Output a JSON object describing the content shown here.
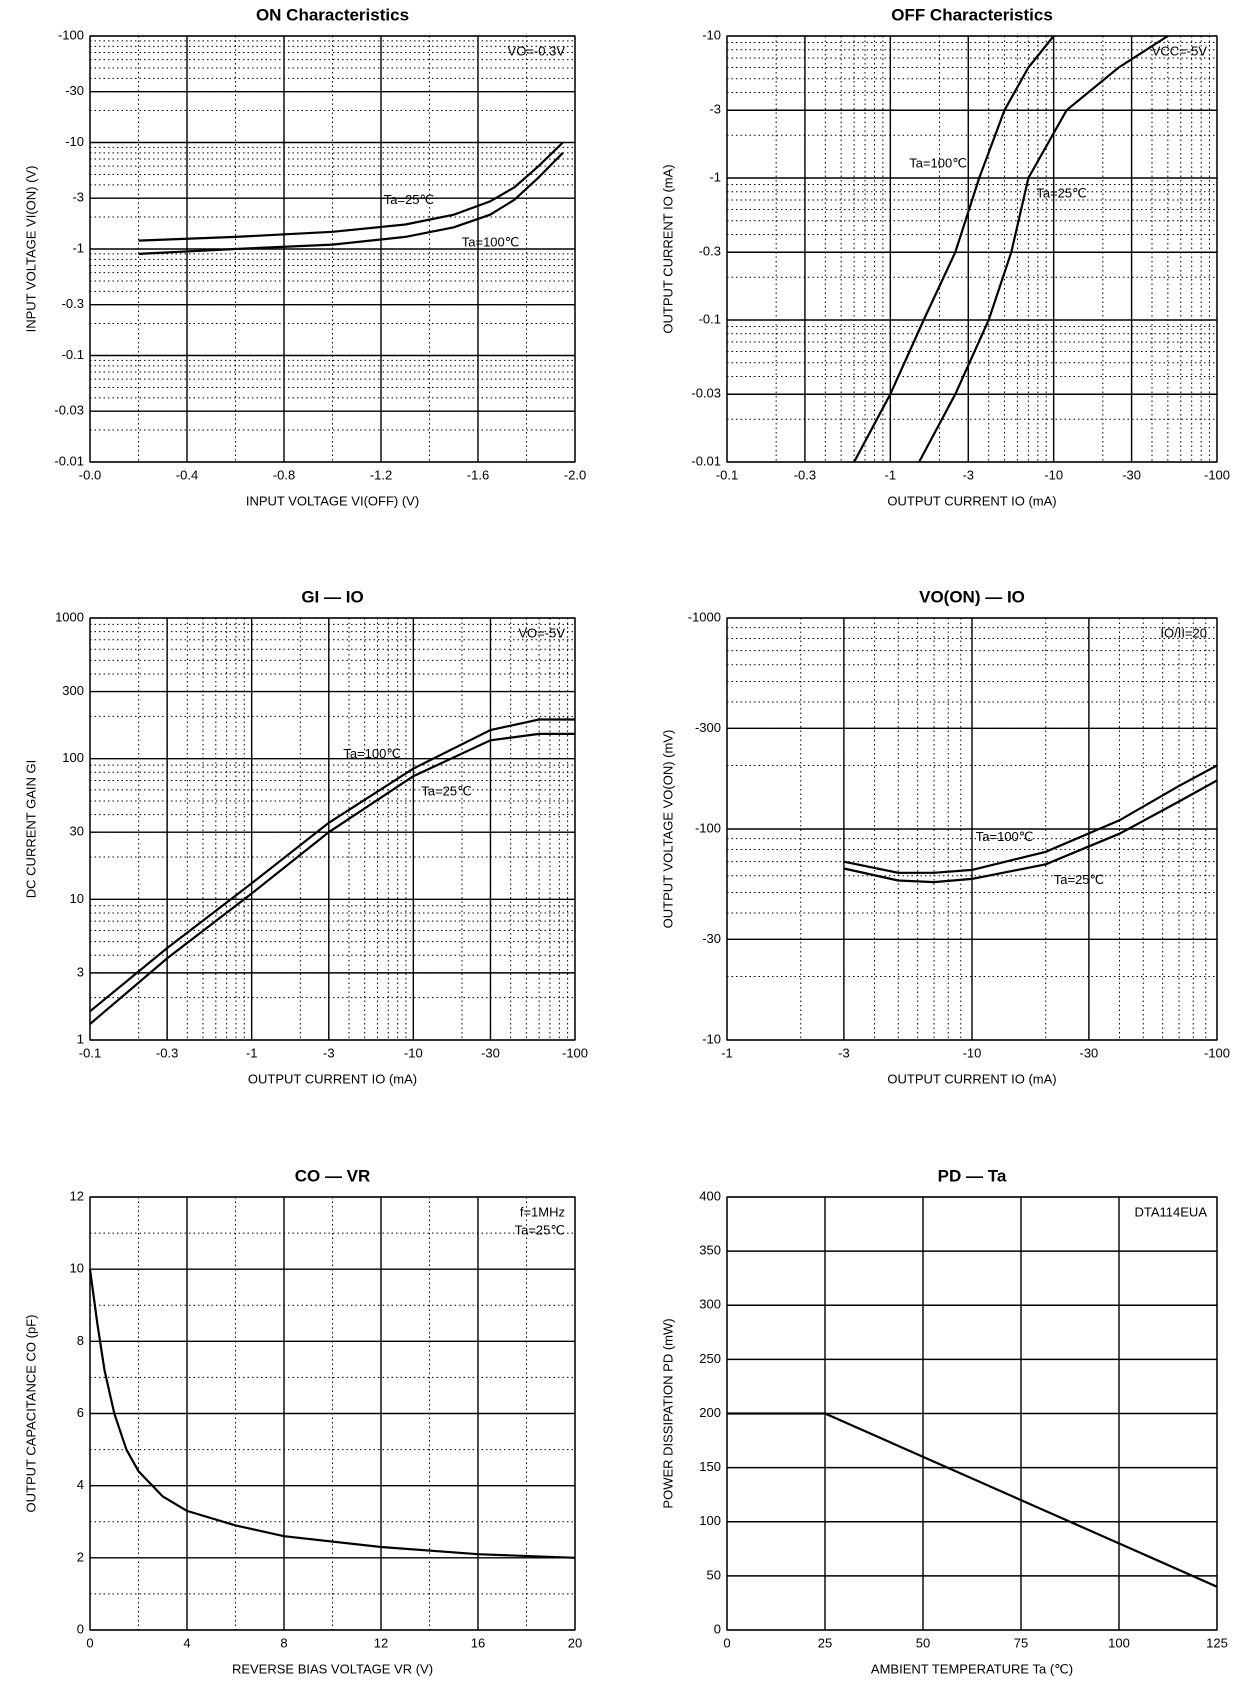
{
  "chart_data": [
    {
      "type": "line",
      "title": "ON Characteristics",
      "xlabel": "INPUT VOLTAGE VI(OFF) (V)",
      "ylabel": "INPUT VOLTAGE VI(ON) (V)",
      "xlog": false,
      "ylog": true,
      "grid": true,
      "minor_grid": true,
      "xlim": [
        0,
        -2
      ],
      "ylim": [
        -0.01,
        -100
      ],
      "xticks": [
        {
          "value": 0,
          "label": "-0.0"
        },
        -0.4,
        -0.8,
        -1.2,
        -1.6,
        {
          "value": -2,
          "label": "-2.0"
        }
      ],
      "yticks": [
        -0.01,
        -0.03,
        -0.1,
        -0.3,
        -1,
        -3,
        -10,
        -30,
        -100
      ],
      "annotations": [
        "VO=-0.3V"
      ],
      "series": [
        {
          "name": "Ta=25℃",
          "color": "#000000",
          "x": [
            -0.2,
            -0.6,
            -1.0,
            -1.3,
            -1.5,
            -1.65,
            -1.75,
            -1.85,
            -1.95
          ],
          "values": [
            -1.2,
            -1.3,
            -1.45,
            -1.7,
            -2.1,
            -2.8,
            -3.8,
            -6,
            -10
          ]
        },
        {
          "name": "Ta=100℃",
          "color": "#000000",
          "x": [
            -0.2,
            -0.6,
            -1.0,
            -1.3,
            -1.5,
            -1.65,
            -1.75,
            -1.85,
            -1.95
          ],
          "values": [
            -0.9,
            -1.0,
            -1.1,
            -1.3,
            -1.6,
            -2.1,
            -2.9,
            -4.7,
            -8
          ]
        }
      ]
    },
    {
      "type": "line",
      "title": "OFF Characteristics",
      "xlabel": "OUTPUT CURRENT IO (mA)",
      "ylabel": "OUTPUT CURRENT IO (mA)",
      "xlog": true,
      "ylog": true,
      "grid": true,
      "minor_grid": true,
      "xlim": [
        -0.1,
        -100
      ],
      "ylim": [
        -0.01,
        -10
      ],
      "xticks": [
        -0.1,
        -0.3,
        -1,
        -3,
        -10,
        -30,
        -100
      ],
      "yticks": [
        -0.01,
        -0.03,
        -0.1,
        -0.3,
        -1,
        -3,
        -10
      ],
      "annotations": [
        "VCC=-5V"
      ],
      "series": [
        {
          "name": "Ta=100℃",
          "color": "#000000",
          "x": [
            -0.6,
            -1,
            -1.6,
            -2.5,
            -3.5,
            -5,
            -7,
            -10
          ],
          "values": [
            -0.01,
            -0.03,
            -0.1,
            -0.3,
            -1,
            -3,
            -6,
            -10
          ]
        },
        {
          "name": "Ta=25℃",
          "color": "#000000",
          "x": [
            -1.5,
            -2.5,
            -4,
            -5.5,
            -7,
            -12,
            -25,
            -50
          ],
          "values": [
            -0.01,
            -0.03,
            -0.1,
            -0.3,
            -1,
            -3,
            -6,
            -10
          ]
        }
      ]
    },
    {
      "type": "line",
      "title": "GI — IO",
      "xlabel": "OUTPUT CURRENT IO (mA)",
      "ylabel": "DC CURRENT GAIN GI",
      "xlog": true,
      "ylog": true,
      "grid": true,
      "minor_grid": true,
      "xlim": [
        -0.1,
        -100
      ],
      "ylim": [
        1,
        1000
      ],
      "xticks": [
        -0.1,
        -0.3,
        -1,
        -3,
        -10,
        -30,
        -100
      ],
      "yticks": [
        1,
        3,
        10,
        30,
        100,
        300,
        1000
      ],
      "annotations": [
        "VO=-5V"
      ],
      "series": [
        {
          "name": "Ta=100℃",
          "color": "#000000",
          "x": [
            -0.1,
            -0.3,
            -1,
            -3,
            -10,
            -30,
            -60,
            -100
          ],
          "values": [
            1.6,
            4.5,
            13,
            35,
            85,
            160,
            190,
            190
          ]
        },
        {
          "name": "Ta=25℃",
          "color": "#000000",
          "x": [
            -0.1,
            -0.3,
            -1,
            -3,
            -10,
            -30,
            -60,
            -100
          ],
          "values": [
            1.3,
            3.8,
            11,
            30,
            75,
            135,
            150,
            150
          ]
        }
      ]
    },
    {
      "type": "line",
      "title": "VO(ON) — IO",
      "xlabel": "OUTPUT CURRENT IO (mA)",
      "ylabel": "OUTPUT VOLTAGE VO(ON) (mV)",
      "xlog": true,
      "ylog": true,
      "grid": true,
      "minor_grid": true,
      "xlim": [
        -1,
        -100
      ],
      "ylim": [
        -10,
        -1000
      ],
      "xticks": [
        -1,
        -3,
        -10,
        -30,
        -100
      ],
      "yticks": [
        -10,
        -30,
        -100,
        -300,
        -1000
      ],
      "annotations": [
        "IO/II=20"
      ],
      "series": [
        {
          "name": "Ta=100℃",
          "color": "#000000",
          "x": [
            -3,
            -5,
            -7,
            -10,
            -20,
            -40,
            -70,
            -100
          ],
          "values": [
            -70,
            -62,
            -62,
            -64,
            -78,
            -110,
            -160,
            -200
          ]
        },
        {
          "name": "Ta=25℃",
          "color": "#000000",
          "x": [
            -3,
            -5,
            -7,
            -10,
            -20,
            -40,
            -70,
            -100
          ],
          "values": [
            -65,
            -57,
            -56,
            -58,
            -68,
            -95,
            -135,
            -170
          ]
        }
      ]
    },
    {
      "type": "line",
      "title": "CO — VR",
      "xlabel": "REVERSE BIAS VOLTAGE VR (V)",
      "ylabel": "OUTPUT CAPACITANCE CO (pF)",
      "xlog": false,
      "ylog": false,
      "grid": true,
      "minor_grid": true,
      "xlim": [
        0,
        20
      ],
      "ylim": [
        0,
        12
      ],
      "xticks": [
        0,
        4,
        8,
        12,
        16,
        20
      ],
      "yticks": [
        0,
        2,
        4,
        6,
        8,
        10,
        12
      ],
      "annotations": [
        "f=1MHz",
        "Ta=25℃"
      ],
      "series": [
        {
          "color": "#000000",
          "x": [
            0,
            0.3,
            0.6,
            1,
            1.5,
            2,
            3,
            4,
            6,
            8,
            12,
            16,
            20
          ],
          "values": [
            10,
            8.5,
            7.2,
            6,
            5,
            4.4,
            3.7,
            3.3,
            2.9,
            2.6,
            2.3,
            2.1,
            2.0
          ]
        }
      ]
    },
    {
      "type": "line",
      "title": "PD — Ta",
      "xlabel": "AMBIENT TEMPERATURE Ta (℃)",
      "ylabel": "POWER DISSIPATION PD (mW)",
      "xlog": false,
      "ylog": false,
      "grid": true,
      "minor_grid": false,
      "xlim": [
        0,
        125
      ],
      "ylim": [
        0,
        400
      ],
      "xticks": [
        0,
        25,
        50,
        75,
        100,
        125
      ],
      "yticks": [
        0,
        50,
        100,
        150,
        200,
        250,
        300,
        350,
        400
      ],
      "annotations": [
        "DTA114EUA"
      ],
      "series": [
        {
          "color": "#000000",
          "x": [
            0,
            25,
            125
          ],
          "values": [
            200,
            200,
            40
          ]
        }
      ]
    }
  ]
}
